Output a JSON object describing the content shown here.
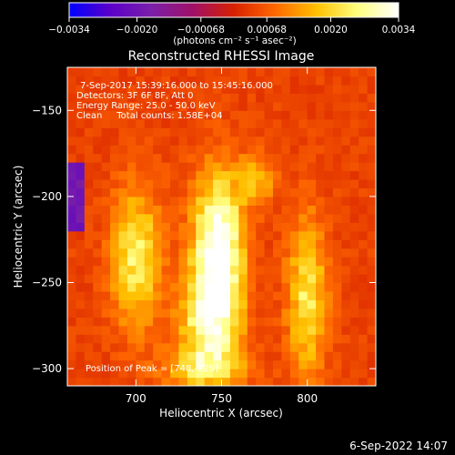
{
  "chart_data": {
    "type": "heatmap",
    "title": "Reconstructed RHESSI Image",
    "xlabel": "Heliocentric X (arcsec)",
    "ylabel": "Heliocentric Y (arcsec)",
    "xlim": [
      660,
      840
    ],
    "ylim": [
      -310,
      -125
    ],
    "x_ticks": [
      {
        "v": 700,
        "label": "700"
      },
      {
        "v": 750,
        "label": "750"
      },
      {
        "v": 800,
        "label": "800"
      }
    ],
    "y_ticks": [
      {
        "v": -150,
        "label": "-150"
      },
      {
        "v": -200,
        "label": "-200"
      },
      {
        "v": -250,
        "label": "-250"
      },
      {
        "v": -300,
        "label": "-300"
      }
    ],
    "colorbar": {
      "min": -0.0034,
      "max": 0.0034,
      "ticks": [
        {
          "v": -0.0034,
          "label": "-0.0034"
        },
        {
          "v": -0.002,
          "label": "-0.0020"
        },
        {
          "v": -0.00068,
          "label": "-0.00068"
        },
        {
          "v": 0.00068,
          "label": "0.00068"
        },
        {
          "v": 0.002,
          "label": "0.0020"
        },
        {
          "v": 0.0034,
          "label": "0.0034"
        }
      ],
      "unit_label": "(photons cm⁻² s⁻¹ asec⁻²)",
      "colors": [
        "#0000ff",
        "#5b00c8",
        "#7a20a8",
        "#a01068",
        "#d82000",
        "#ff6800",
        "#ffc000",
        "#ffff80",
        "#ffffff"
      ]
    },
    "grid": false,
    "annotations": [
      "7-Sep-2017 15:39:16.000 to 15:45:16.000",
      "Detectors: 3F 6F 8F, Att 0",
      "Energy Range: 25.0 - 50.0 keV",
      "Clean     Total counts: 1.58E+04"
    ],
    "peak_label": "Position of Peak = [748,-229]",
    "peak": [
      748,
      -229
    ],
    "sources": [
      {
        "x": 748,
        "y": -232,
        "sx": 10,
        "sy": 30,
        "amp": 1.0
      },
      {
        "x": 742,
        "y": -275,
        "sx": 12,
        "sy": 20,
        "amp": 0.6
      },
      {
        "x": 700,
        "y": -235,
        "sx": 10,
        "sy": 28,
        "amp": 0.58
      },
      {
        "x": 800,
        "y": -258,
        "sx": 8,
        "sy": 32,
        "amp": 0.55
      },
      {
        "x": 770,
        "y": -190,
        "sx": 8,
        "sy": 10,
        "amp": 0.35
      },
      {
        "x": 740,
        "y": -300,
        "sx": 18,
        "sy": 8,
        "amp": 0.35
      }
    ],
    "background_level": 0.12
  },
  "footer_date": "6-Sep-2022 14:07"
}
